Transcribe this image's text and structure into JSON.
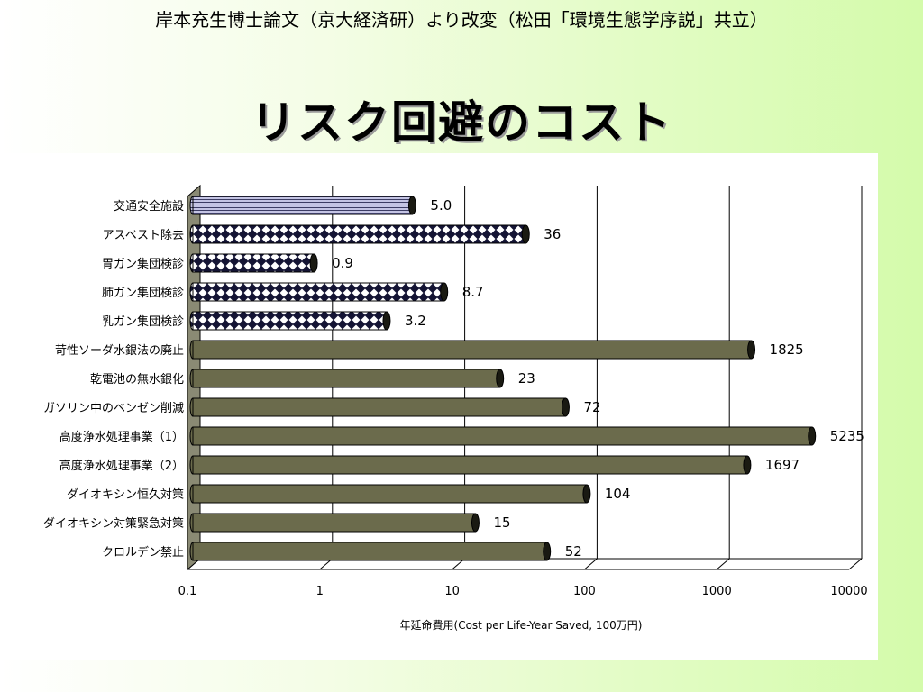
{
  "header": {
    "subtitle": "岸本充生博士論文（京大経済研）より改変（松田「環境生態学序説」共立）",
    "title": "リスク回避のコスト"
  },
  "colors": {
    "page_background": "#dafcb8",
    "bar_olive": "#6b6b4c",
    "bar_pattern_dark": "#141434",
    "bar_pattern_light": "#ffffff",
    "bar_striped_fill": "#b0b0d8"
  },
  "chart_data": {
    "type": "bar",
    "orientation": "horizontal",
    "xscale": "log",
    "xlim": [
      0.1,
      10000
    ],
    "xticks": [
      "0.1",
      "1",
      "10",
      "100",
      "1000",
      "10000"
    ],
    "xlabel": "年延命費用(Cost per Life-Year Saved, 100万円)",
    "ylabel": "",
    "grid": true,
    "categories": [
      "交通安全施設",
      "アスベスト除去",
      "胃ガン集団検診",
      "肺ガン集団検診",
      "乳ガン集団検診",
      "苛性ソーダ水銀法の廃止",
      "乾電池の無水銀化",
      "ガソリン中のベンゼン削減",
      "高度浄水処理事業（1）",
      "高度浄水処理事業（2）",
      "ダイオキシン恒久対策",
      "ダイオキシン対策緊急対策",
      "クロルデン禁止"
    ],
    "values": [
      5.0,
      36,
      0.9,
      8.7,
      3.2,
      1825,
      23,
      72,
      5235,
      1697,
      104,
      15,
      52
    ],
    "value_labels": [
      "5.0",
      "36",
      "0.9",
      "8.7",
      "3.2",
      "1825",
      "23",
      "72",
      "5235",
      "1697",
      "104",
      "15",
      "52"
    ],
    "bar_styles": [
      "striped",
      "checker",
      "checker",
      "checker",
      "checker",
      "olive",
      "olive",
      "olive",
      "olive",
      "olive",
      "olive",
      "olive",
      "olive"
    ]
  }
}
